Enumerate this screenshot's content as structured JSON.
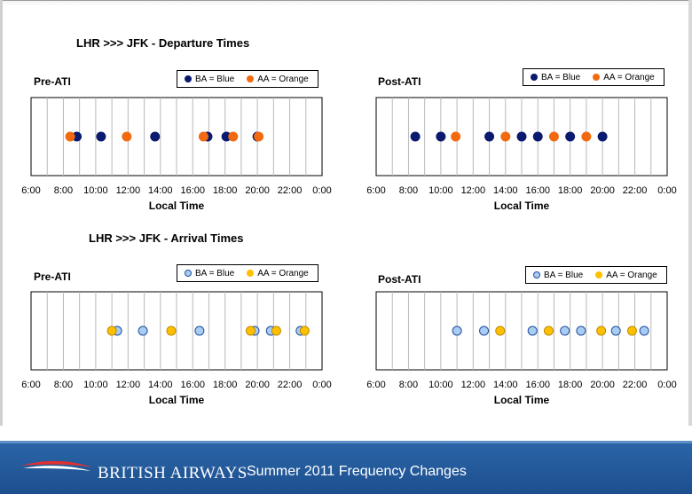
{
  "colors": {
    "ba_depart": "#0a1a6e",
    "aa_orange": "#f26a10",
    "ba_arrive": "#a9ccf0",
    "aa_arrive": "#ffc000",
    "footer": "#234f8c"
  },
  "sections": {
    "departure": "LHR >>> JFK - Departure Times",
    "arrival": "LHR >>> JFK - Arrival Times"
  },
  "footer": {
    "brand": "BRITISH AIRWAYS",
    "subtitle": "Summer 2011 Frequency Changes"
  },
  "chart_data": [
    {
      "id": "dep-pre",
      "type": "scatter",
      "title": "Pre-ATI",
      "xlabel": "Local Time",
      "x_ticks": [
        "6:00",
        "8:00",
        "10:00",
        "12:00",
        "14:00",
        "16:00",
        "18:00",
        "20:00",
        "22:00",
        "0:00"
      ],
      "xlim_hours": [
        6,
        24
      ],
      "legend": [
        "BA = Blue",
        "AA = Orange"
      ],
      "series": [
        {
          "name": "BA = Blue",
          "color": "#0a1a6e",
          "edge": "#0a1a6e",
          "times_hours": [
            8.83,
            10.33,
            13.67,
            16.92,
            18.08,
            20.0
          ]
        },
        {
          "name": "AA = Orange",
          "color": "#f26a10",
          "edge": "#f26a10",
          "times_hours": [
            8.42,
            11.92,
            16.67,
            18.5,
            20.08
          ]
        }
      ]
    },
    {
      "id": "dep-post",
      "type": "scatter",
      "title": "Post-ATI",
      "xlabel": "Local Time",
      "x_ticks": [
        "6:00",
        "8:00",
        "10:00",
        "12:00",
        "14:00",
        "16:00",
        "18:00",
        "20:00",
        "22:00",
        "0:00"
      ],
      "xlim_hours": [
        6,
        24
      ],
      "legend": [
        "BA = Blue",
        "AA = Orange"
      ],
      "series": [
        {
          "name": "BA = Blue",
          "color": "#0a1a6e",
          "edge": "#0a1a6e",
          "times_hours": [
            8.42,
            10.0,
            13.0,
            15.0,
            16.0,
            18.0,
            20.0
          ]
        },
        {
          "name": "AA = Orange",
          "color": "#f26a10",
          "edge": "#f26a10",
          "times_hours": [
            10.92,
            14.0,
            17.0,
            19.0
          ]
        }
      ]
    },
    {
      "id": "arr-pre",
      "type": "scatter",
      "title": "Pre-ATI",
      "xlabel": "Local Time",
      "x_ticks": [
        "6:00",
        "8:00",
        "10:00",
        "12:00",
        "14:00",
        "16:00",
        "18:00",
        "20:00",
        "22:00",
        "0:00"
      ],
      "xlim_hours": [
        6,
        24
      ],
      "legend": [
        "BA = Blue",
        "AA = Orange"
      ],
      "series": [
        {
          "name": "BA = Blue",
          "color": "#a9ccf0",
          "edge": "#1f4fa0",
          "times_hours": [
            11.33,
            12.92,
            16.42,
            19.83,
            20.83,
            22.67
          ]
        },
        {
          "name": "AA = Orange",
          "color": "#ffc000",
          "edge": "#c08a00",
          "times_hours": [
            11.0,
            14.67,
            19.58,
            21.17,
            22.92
          ]
        }
      ]
    },
    {
      "id": "arr-post",
      "type": "scatter",
      "title": "Post-ATI",
      "xlabel": "Local Time",
      "x_ticks": [
        "6:00",
        "8:00",
        "10:00",
        "12:00",
        "14:00",
        "16:00",
        "18:00",
        "20:00",
        "22:00",
        "0:00"
      ],
      "xlim_hours": [
        6,
        24
      ],
      "legend": [
        "BA = Blue",
        "AA = Orange"
      ],
      "series": [
        {
          "name": "BA = Blue",
          "color": "#a9ccf0",
          "edge": "#1f4fa0",
          "times_hours": [
            11.0,
            12.67,
            15.67,
            17.67,
            18.67,
            20.83,
            22.58
          ]
        },
        {
          "name": "AA = Orange",
          "color": "#ffc000",
          "edge": "#c08a00",
          "times_hours": [
            13.67,
            16.67,
            19.92,
            21.83
          ]
        }
      ]
    }
  ]
}
